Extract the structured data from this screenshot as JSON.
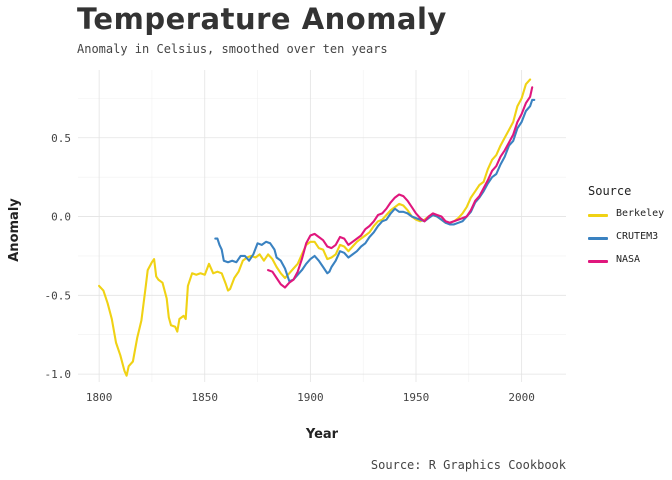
{
  "chart_data": {
    "type": "line",
    "title": "Temperature Anomaly",
    "subtitle": "Anomaly in Celsius, smoothed over ten years",
    "caption": "Source: R Graphics Cookbook",
    "xlabel": "Year",
    "ylabel": "Anomaly",
    "xlim": [
      1790,
      2021
    ],
    "ylim": [
      -1.05,
      0.93
    ],
    "x_ticks": [
      1800,
      1850,
      1900,
      1950,
      2000
    ],
    "x_tick_labels": [
      "1800",
      "1850",
      "1900",
      "1950",
      "2000"
    ],
    "y_ticks": [
      -1.0,
      -0.5,
      0.0,
      0.5
    ],
    "y_tick_labels": [
      "-1.0",
      "-0.5",
      "0.0",
      "0.5"
    ],
    "legend_title": "Source",
    "legend_position": "right",
    "series": [
      {
        "name": "Berkeley",
        "color": "#f0d214",
        "points": [
          [
            1800,
            -0.44
          ],
          [
            1802,
            -0.47
          ],
          [
            1804,
            -0.55
          ],
          [
            1806,
            -0.65
          ],
          [
            1808,
            -0.8
          ],
          [
            1810,
            -0.88
          ],
          [
            1812,
            -0.98
          ],
          [
            1813,
            -1.01
          ],
          [
            1814,
            -0.95
          ],
          [
            1816,
            -0.92
          ],
          [
            1818,
            -0.77
          ],
          [
            1820,
            -0.66
          ],
          [
            1822,
            -0.45
          ],
          [
            1823,
            -0.34
          ],
          [
            1825,
            -0.29
          ],
          [
            1826,
            -0.27
          ],
          [
            1827,
            -0.38
          ],
          [
            1828,
            -0.4
          ],
          [
            1830,
            -0.42
          ],
          [
            1832,
            -0.52
          ],
          [
            1833,
            -0.64
          ],
          [
            1834,
            -0.69
          ],
          [
            1836,
            -0.7
          ],
          [
            1837,
            -0.73
          ],
          [
            1838,
            -0.65
          ],
          [
            1840,
            -0.63
          ],
          [
            1841,
            -0.65
          ],
          [
            1842,
            -0.44
          ],
          [
            1844,
            -0.36
          ],
          [
            1846,
            -0.37
          ],
          [
            1848,
            -0.36
          ],
          [
            1850,
            -0.37
          ],
          [
            1852,
            -0.3
          ],
          [
            1854,
            -0.36
          ],
          [
            1856,
            -0.35
          ],
          [
            1858,
            -0.36
          ],
          [
            1860,
            -0.43
          ],
          [
            1861,
            -0.47
          ],
          [
            1862,
            -0.46
          ],
          [
            1864,
            -0.39
          ],
          [
            1866,
            -0.35
          ],
          [
            1868,
            -0.28
          ],
          [
            1870,
            -0.26
          ],
          [
            1872,
            -0.25
          ],
          [
            1874,
            -0.26
          ],
          [
            1876,
            -0.24
          ],
          [
            1878,
            -0.28
          ],
          [
            1880,
            -0.24
          ],
          [
            1882,
            -0.27
          ],
          [
            1884,
            -0.32
          ],
          [
            1886,
            -0.36
          ],
          [
            1888,
            -0.39
          ],
          [
            1890,
            -0.36
          ],
          [
            1892,
            -0.33
          ],
          [
            1894,
            -0.3
          ],
          [
            1896,
            -0.24
          ],
          [
            1898,
            -0.18
          ],
          [
            1900,
            -0.16
          ],
          [
            1902,
            -0.16
          ],
          [
            1904,
            -0.2
          ],
          [
            1906,
            -0.21
          ],
          [
            1908,
            -0.27
          ],
          [
            1910,
            -0.26
          ],
          [
            1912,
            -0.24
          ],
          [
            1914,
            -0.18
          ],
          [
            1916,
            -0.19
          ],
          [
            1918,
            -0.22
          ],
          [
            1920,
            -0.19
          ],
          [
            1922,
            -0.16
          ],
          [
            1924,
            -0.14
          ],
          [
            1926,
            -0.12
          ],
          [
            1928,
            -0.1
          ],
          [
            1930,
            -0.06
          ],
          [
            1932,
            -0.03
          ],
          [
            1934,
            -0.02
          ],
          [
            1936,
            0.01
          ],
          [
            1938,
            0.04
          ],
          [
            1940,
            0.06
          ],
          [
            1942,
            0.08
          ],
          [
            1944,
            0.07
          ],
          [
            1946,
            0.04
          ],
          [
            1948,
            0.0
          ],
          [
            1950,
            -0.02
          ],
          [
            1952,
            -0.03
          ],
          [
            1954,
            -0.02
          ],
          [
            1956,
            0.0
          ],
          [
            1958,
            0.01
          ],
          [
            1960,
            0.0
          ],
          [
            1962,
            -0.02
          ],
          [
            1964,
            -0.04
          ],
          [
            1966,
            -0.04
          ],
          [
            1968,
            -0.03
          ],
          [
            1970,
            -0.01
          ],
          [
            1972,
            0.02
          ],
          [
            1974,
            0.06
          ],
          [
            1976,
            0.12
          ],
          [
            1978,
            0.16
          ],
          [
            1980,
            0.2
          ],
          [
            1982,
            0.22
          ],
          [
            1984,
            0.3
          ],
          [
            1986,
            0.36
          ],
          [
            1988,
            0.39
          ],
          [
            1990,
            0.45
          ],
          [
            1992,
            0.5
          ],
          [
            1994,
            0.55
          ],
          [
            1996,
            0.6
          ],
          [
            1998,
            0.7
          ],
          [
            2000,
            0.75
          ],
          [
            2002,
            0.84
          ],
          [
            2004,
            0.87
          ]
        ]
      },
      {
        "name": "CRUTEM3",
        "color": "#3a82c1",
        "points": [
          [
            1855,
            -0.14
          ],
          [
            1856,
            -0.14
          ],
          [
            1857,
            -0.18
          ],
          [
            1858,
            -0.21
          ],
          [
            1859,
            -0.28
          ],
          [
            1861,
            -0.29
          ],
          [
            1863,
            -0.28
          ],
          [
            1865,
            -0.29
          ],
          [
            1867,
            -0.25
          ],
          [
            1869,
            -0.25
          ],
          [
            1871,
            -0.28
          ],
          [
            1873,
            -0.24
          ],
          [
            1875,
            -0.17
          ],
          [
            1877,
            -0.18
          ],
          [
            1879,
            -0.16
          ],
          [
            1881,
            -0.17
          ],
          [
            1883,
            -0.21
          ],
          [
            1884,
            -0.26
          ],
          [
            1886,
            -0.28
          ],
          [
            1888,
            -0.33
          ],
          [
            1890,
            -0.41
          ],
          [
            1892,
            -0.4
          ],
          [
            1894,
            -0.37
          ],
          [
            1896,
            -0.34
          ],
          [
            1898,
            -0.3
          ],
          [
            1900,
            -0.27
          ],
          [
            1902,
            -0.25
          ],
          [
            1904,
            -0.28
          ],
          [
            1906,
            -0.32
          ],
          [
            1908,
            -0.36
          ],
          [
            1909,
            -0.35
          ],
          [
            1910,
            -0.32
          ],
          [
            1912,
            -0.28
          ],
          [
            1914,
            -0.22
          ],
          [
            1916,
            -0.23
          ],
          [
            1918,
            -0.26
          ],
          [
            1920,
            -0.24
          ],
          [
            1922,
            -0.22
          ],
          [
            1924,
            -0.19
          ],
          [
            1926,
            -0.17
          ],
          [
            1928,
            -0.13
          ],
          [
            1930,
            -0.1
          ],
          [
            1932,
            -0.06
          ],
          [
            1934,
            -0.03
          ],
          [
            1936,
            -0.02
          ],
          [
            1938,
            0.02
          ],
          [
            1940,
            0.05
          ],
          [
            1942,
            0.03
          ],
          [
            1944,
            0.03
          ],
          [
            1946,
            0.02
          ],
          [
            1948,
            0.0
          ],
          [
            1950,
            -0.01
          ],
          [
            1952,
            -0.02
          ],
          [
            1954,
            -0.03
          ],
          [
            1956,
            -0.01
          ],
          [
            1958,
            0.01
          ],
          [
            1960,
            0.0
          ],
          [
            1962,
            -0.02
          ],
          [
            1964,
            -0.04
          ],
          [
            1966,
            -0.05
          ],
          [
            1968,
            -0.05
          ],
          [
            1970,
            -0.04
          ],
          [
            1972,
            -0.03
          ],
          [
            1974,
            0.0
          ],
          [
            1976,
            0.03
          ],
          [
            1978,
            0.09
          ],
          [
            1980,
            0.12
          ],
          [
            1982,
            0.16
          ],
          [
            1984,
            0.21
          ],
          [
            1986,
            0.25
          ],
          [
            1988,
            0.27
          ],
          [
            1990,
            0.33
          ],
          [
            1992,
            0.38
          ],
          [
            1994,
            0.45
          ],
          [
            1996,
            0.48
          ],
          [
            1998,
            0.56
          ],
          [
            2000,
            0.6
          ],
          [
            2002,
            0.67
          ],
          [
            2004,
            0.7
          ],
          [
            2005,
            0.74
          ],
          [
            2006,
            0.74
          ]
        ]
      },
      {
        "name": "NASA",
        "color": "#e0177d",
        "points": [
          [
            1880,
            -0.34
          ],
          [
            1882,
            -0.35
          ],
          [
            1884,
            -0.39
          ],
          [
            1886,
            -0.43
          ],
          [
            1888,
            -0.45
          ],
          [
            1890,
            -0.42
          ],
          [
            1892,
            -0.4
          ],
          [
            1894,
            -0.35
          ],
          [
            1896,
            -0.27
          ],
          [
            1898,
            -0.17
          ],
          [
            1900,
            -0.12
          ],
          [
            1902,
            -0.11
          ],
          [
            1904,
            -0.13
          ],
          [
            1906,
            -0.15
          ],
          [
            1908,
            -0.19
          ],
          [
            1910,
            -0.2
          ],
          [
            1912,
            -0.18
          ],
          [
            1914,
            -0.13
          ],
          [
            1916,
            -0.14
          ],
          [
            1918,
            -0.18
          ],
          [
            1920,
            -0.16
          ],
          [
            1922,
            -0.14
          ],
          [
            1924,
            -0.12
          ],
          [
            1926,
            -0.08
          ],
          [
            1928,
            -0.06
          ],
          [
            1930,
            -0.03
          ],
          [
            1932,
            0.01
          ],
          [
            1934,
            0.02
          ],
          [
            1936,
            0.05
          ],
          [
            1938,
            0.09
          ],
          [
            1940,
            0.12
          ],
          [
            1942,
            0.14
          ],
          [
            1944,
            0.13
          ],
          [
            1946,
            0.1
          ],
          [
            1948,
            0.06
          ],
          [
            1950,
            0.02
          ],
          [
            1952,
            -0.01
          ],
          [
            1954,
            -0.03
          ],
          [
            1956,
            0.0
          ],
          [
            1958,
            0.02
          ],
          [
            1960,
            0.01
          ],
          [
            1962,
            0.0
          ],
          [
            1964,
            -0.03
          ],
          [
            1966,
            -0.04
          ],
          [
            1968,
            -0.03
          ],
          [
            1970,
            -0.02
          ],
          [
            1972,
            -0.01
          ],
          [
            1974,
            0.0
          ],
          [
            1976,
            0.04
          ],
          [
            1978,
            0.1
          ],
          [
            1980,
            0.13
          ],
          [
            1982,
            0.18
          ],
          [
            1984,
            0.23
          ],
          [
            1986,
            0.29
          ],
          [
            1988,
            0.32
          ],
          [
            1990,
            0.38
          ],
          [
            1992,
            0.42
          ],
          [
            1994,
            0.47
          ],
          [
            1996,
            0.52
          ],
          [
            1998,
            0.6
          ],
          [
            2000,
            0.65
          ],
          [
            2002,
            0.72
          ],
          [
            2004,
            0.76
          ],
          [
            2005,
            0.82
          ]
        ]
      }
    ]
  }
}
